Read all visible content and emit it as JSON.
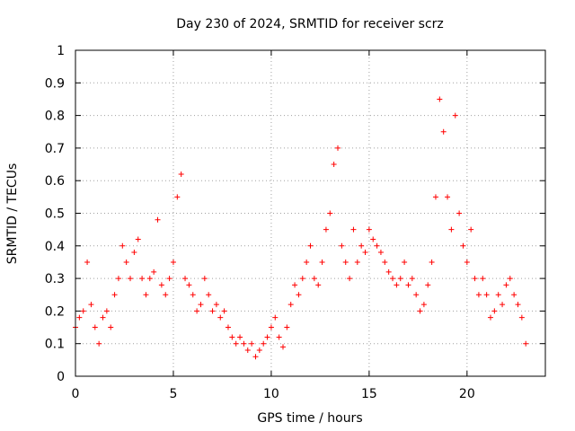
{
  "chart_data": {
    "type": "scatter",
    "title": "Day 230 of 2024, SRMTID for receiver scrz",
    "xlabel": "GPS time / hours",
    "ylabel": "SRMTID / TECUs",
    "xlim": [
      0,
      24
    ],
    "ylim": [
      0,
      1
    ],
    "xticks": [
      0,
      5,
      10,
      15,
      20
    ],
    "xtick_labels": [
      "0",
      "5",
      "10",
      "15",
      "20"
    ],
    "yticks": [
      0,
      0.1,
      0.2,
      0.3,
      0.4,
      0.5,
      0.6,
      0.7,
      0.8,
      0.9,
      1
    ],
    "ytick_labels": [
      "0",
      "0.1",
      "0.2",
      "0.3",
      "0.4",
      "0.5",
      "0.6",
      "0.7",
      "0.8",
      "0.9",
      "1"
    ],
    "grid": true,
    "marker": "+",
    "color": "#ff0000",
    "series": [
      {
        "name": "SRMTID",
        "x": [
          0.0,
          0.2,
          0.4,
          0.6,
          0.8,
          1.0,
          1.2,
          1.4,
          1.6,
          1.8,
          2.0,
          2.2,
          2.4,
          2.6,
          2.8,
          3.0,
          3.2,
          3.4,
          3.6,
          3.8,
          4.0,
          4.2,
          4.4,
          4.6,
          4.8,
          5.0,
          5.2,
          5.4,
          5.6,
          5.8,
          6.0,
          6.2,
          6.4,
          6.6,
          6.8,
          7.0,
          7.2,
          7.4,
          7.6,
          7.8,
          8.0,
          8.2,
          8.4,
          8.6,
          8.8,
          9.0,
          9.2,
          9.4,
          9.6,
          9.8,
          10.0,
          10.2,
          10.4,
          10.6,
          10.8,
          11.0,
          11.2,
          11.4,
          11.6,
          11.8,
          12.0,
          12.2,
          12.4,
          12.6,
          12.8,
          13.0,
          13.2,
          13.4,
          13.6,
          13.8,
          14.0,
          14.2,
          14.4,
          14.6,
          14.8,
          15.0,
          15.2,
          15.4,
          15.6,
          15.8,
          16.0,
          16.2,
          16.4,
          16.6,
          16.8,
          17.0,
          17.2,
          17.4,
          17.6,
          17.8,
          18.0,
          18.2,
          18.4,
          18.6,
          18.8,
          19.0,
          19.2,
          19.4,
          19.6,
          19.8,
          20.0,
          20.2,
          20.4,
          20.6,
          20.8,
          21.0,
          21.2,
          21.4,
          21.6,
          21.8,
          22.0,
          22.2,
          22.4,
          22.6,
          22.8,
          23.0
        ],
        "y": [
          0.15,
          0.18,
          0.2,
          0.35,
          0.22,
          0.15,
          0.1,
          0.18,
          0.2,
          0.15,
          0.25,
          0.3,
          0.4,
          0.35,
          0.3,
          0.38,
          0.42,
          0.3,
          0.25,
          0.3,
          0.32,
          0.48,
          0.28,
          0.25,
          0.3,
          0.35,
          0.55,
          0.62,
          0.3,
          0.28,
          0.25,
          0.2,
          0.22,
          0.3,
          0.25,
          0.2,
          0.22,
          0.18,
          0.2,
          0.15,
          0.12,
          0.1,
          0.12,
          0.1,
          0.08,
          0.1,
          0.06,
          0.08,
          0.1,
          0.12,
          0.15,
          0.18,
          0.12,
          0.09,
          0.15,
          0.22,
          0.28,
          0.25,
          0.3,
          0.35,
          0.4,
          0.3,
          0.28,
          0.35,
          0.45,
          0.5,
          0.65,
          0.7,
          0.4,
          0.35,
          0.3,
          0.45,
          0.35,
          0.4,
          0.38,
          0.45,
          0.42,
          0.4,
          0.38,
          0.35,
          0.32,
          0.3,
          0.28,
          0.3,
          0.35,
          0.28,
          0.3,
          0.25,
          0.2,
          0.22,
          0.28,
          0.35,
          0.55,
          0.85,
          0.75,
          0.55,
          0.45,
          0.8,
          0.5,
          0.4,
          0.35,
          0.45,
          0.3,
          0.25,
          0.3,
          0.25,
          0.18,
          0.2,
          0.25,
          0.22,
          0.28,
          0.3,
          0.25,
          0.22,
          0.18,
          0.1
        ]
      }
    ]
  }
}
